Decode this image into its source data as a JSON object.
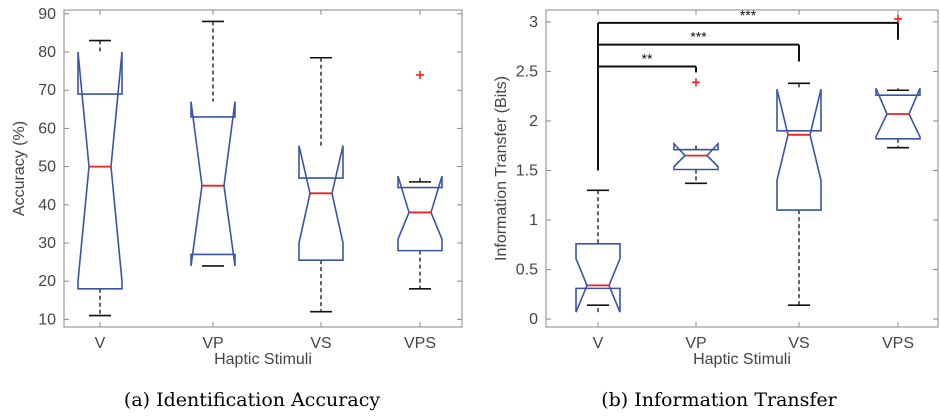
{
  "chart_data": [
    {
      "type": "boxplot",
      "notched": true,
      "caption": "(a) Identification Accuracy",
      "xlabel": "Haptic Stimuli",
      "ylabel": "Accuracy (%)",
      "ylim": [
        8,
        91
      ],
      "yticks": [
        10,
        20,
        30,
        40,
        50,
        60,
        70,
        80,
        90
      ],
      "categories": [
        "V",
        "VP",
        "VS",
        "VPS"
      ],
      "grid": false,
      "boxes": [
        {
          "category": "V",
          "whisker_low": 11,
          "q1": 18,
          "median": 50,
          "q3": 69,
          "whisker_high": 83,
          "notch_low": 20,
          "notch_high": 80,
          "outliers": []
        },
        {
          "category": "VP",
          "whisker_low": 24,
          "q1": 27,
          "median": 45,
          "q3": 63,
          "whisker_high": 88,
          "notch_low": 24,
          "notch_high": 67,
          "outliers": []
        },
        {
          "category": "VS",
          "whisker_low": 12,
          "q1": 25.5,
          "median": 43,
          "q3": 47,
          "whisker_high": 78.5,
          "notch_low": 30,
          "notch_high": 55.5,
          "outliers": []
        },
        {
          "category": "VPS",
          "whisker_low": 18,
          "q1": 28,
          "median": 38,
          "q3": 44.5,
          "whisker_high": 46,
          "notch_low": 31,
          "notch_high": 47.5,
          "outliers": [
            74
          ]
        }
      ]
    },
    {
      "type": "boxplot",
      "notched": true,
      "caption": "(b) Information Transfer",
      "xlabel": "Haptic Stimuli",
      "ylabel": "Information Transfer (Bits)",
      "ylim": [
        -0.08,
        3.12
      ],
      "yticks": [
        0,
        0.5,
        1,
        1.5,
        2,
        2.5,
        3
      ],
      "ytick_labels": [
        "0",
        "0.5",
        "1",
        "1.5",
        "2",
        "2.5",
        "3"
      ],
      "categories": [
        "V",
        "VP",
        "VS",
        "VPS"
      ],
      "grid": false,
      "boxes": [
        {
          "category": "V",
          "whisker_low": 0.14,
          "q1": 0.31,
          "median": 0.34,
          "q3": 0.76,
          "whisker_high": 1.3,
          "notch_low": 0.07,
          "notch_high": 0.61,
          "outliers": []
        },
        {
          "category": "VP",
          "whisker_low": 1.37,
          "q1": 1.51,
          "median": 1.65,
          "q3": 1.71,
          "whisker_high": 1.71,
          "notch_low": 1.54,
          "notch_high": 1.77,
          "outliers": [
            2.39
          ]
        },
        {
          "category": "VS",
          "whisker_low": 0.14,
          "q1": 1.1,
          "median": 1.86,
          "q3": 1.9,
          "whisker_high": 2.38,
          "notch_low": 1.4,
          "notch_high": 2.32,
          "outliers": []
        },
        {
          "category": "VPS",
          "whisker_low": 1.73,
          "q1": 1.82,
          "median": 2.07,
          "q3": 2.26,
          "whisker_high": 2.31,
          "notch_low": 1.84,
          "notch_high": 2.33,
          "outliers": [
            3.03
          ]
        }
      ],
      "significance": [
        {
          "from": "V",
          "to": "VP",
          "label": "**"
        },
        {
          "from": "V",
          "to": "VS",
          "label": "***"
        },
        {
          "from": "V",
          "to": "VPS",
          "label": "***"
        }
      ]
    }
  ],
  "colors": {
    "box": "#3a55a3",
    "median": "#ee2222",
    "outlier": "#ee2222",
    "whisker": "#111111",
    "axis": "#888888"
  }
}
